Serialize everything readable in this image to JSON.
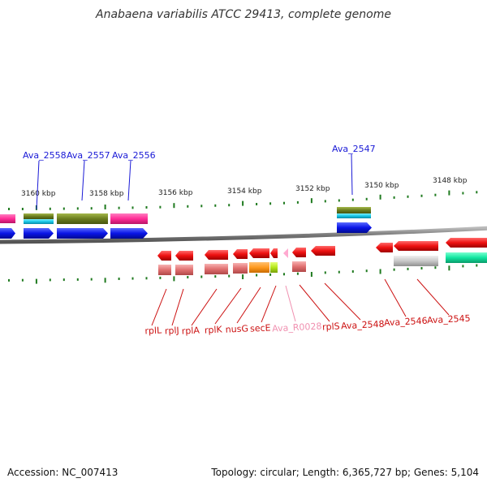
{
  "title": "Anabaena variabilis ATCC 29413, complete genome",
  "footer": {
    "accession": "Accession: NC_007413",
    "summary": "Topology: circular; Length: 6,365,727 bp; Genes: 5,104"
  },
  "scale_labels": [
    "3160 kbp",
    "3158 kbp",
    "3156 kbp",
    "3154 kbp",
    "3152 kbp",
    "3150 kbp",
    "3148 kbp"
  ],
  "upper_gene_labels": [
    "Ava_2558",
    "Ava_2557",
    "Ava_2556",
    "Ava_2547"
  ],
  "lower_gene_labels": [
    {
      "text": "rplL",
      "color": "#cc1111"
    },
    {
      "text": "rplJ",
      "color": "#cc1111"
    },
    {
      "text": "rplA",
      "color": "#cc1111"
    },
    {
      "text": "rplK",
      "color": "#cc1111"
    },
    {
      "text": "nusG",
      "color": "#cc1111"
    },
    {
      "text": "secE",
      "color": "#cc1111"
    },
    {
      "text": "Ava_R0028",
      "color": "#f090b0"
    },
    {
      "text": "rplS",
      "color": "#cc1111"
    },
    {
      "text": "Ava_2548",
      "color": "#cc1111"
    },
    {
      "text": "Ava_2546",
      "color": "#cc1111"
    },
    {
      "text": "Ava_2545",
      "color": "#cc1111"
    }
  ],
  "colors": {
    "forward_gene": "#0a14e6",
    "reverse_gene": "#ee1111",
    "pink_feature": "#ff2d96",
    "olive_feature": "#6b7d1f",
    "cyan_feature": "#18c8e8",
    "tick": "#1f7a1f",
    "backbone": "#777777",
    "upper_label": "#1a1ad6",
    "lower_label": "#cc1111"
  }
}
